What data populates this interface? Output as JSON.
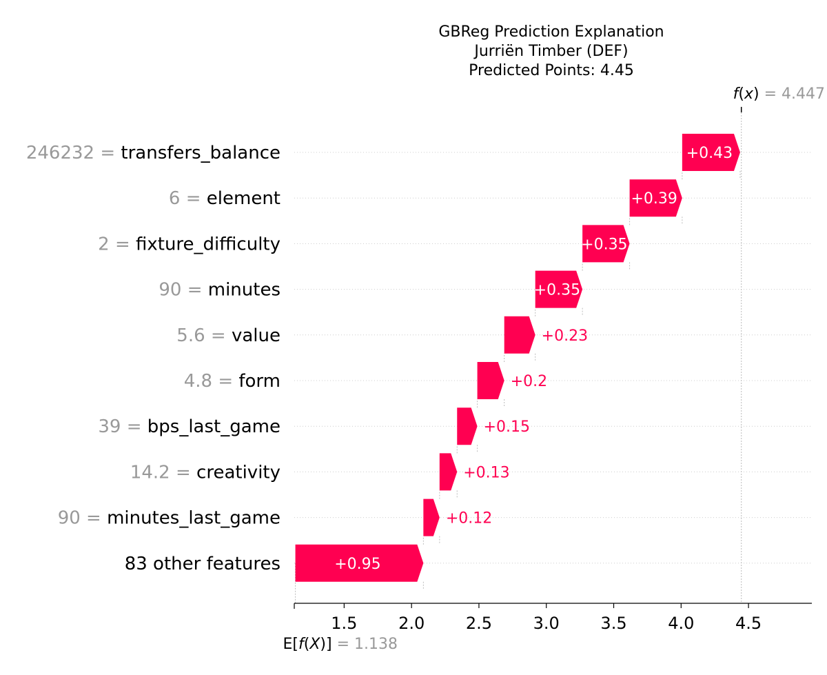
{
  "chart_data": {
    "type": "waterfall",
    "title_lines": [
      "GBReg Prediction Explanation",
      "Jurriën Timber (DEF)",
      "Predicted Points: 4.45"
    ],
    "base_value": 1.138,
    "base_value_text": "1.138",
    "base_label": "E[f(X)]",
    "output_value": 4.447,
    "output_value_text": "4.447",
    "output_label": "f(x)",
    "xlim": [
      1.13,
      4.97
    ],
    "x_ticks": [
      1.5,
      2.0,
      2.5,
      3.0,
      3.5,
      4.0,
      4.5
    ],
    "x_tick_labels": [
      "1.5",
      "2.0",
      "2.5",
      "3.0",
      "3.5",
      "4.0",
      "4.5"
    ],
    "positive_color": "#ff0051",
    "negative_color": "#008bfb",
    "features": [
      {
        "value": "246232",
        "name": "transfers_balance",
        "contribution": 0.43,
        "label": "+0.43"
      },
      {
        "value": "6",
        "name": "element",
        "contribution": 0.39,
        "label": "+0.39"
      },
      {
        "value": "2",
        "name": "fixture_difficulty",
        "contribution": 0.35,
        "label": "+0.35"
      },
      {
        "value": "90",
        "name": "minutes",
        "contribution": 0.35,
        "label": "+0.35"
      },
      {
        "value": "5.6",
        "name": "value",
        "contribution": 0.23,
        "label": "+0.23"
      },
      {
        "value": "4.8",
        "name": "form",
        "contribution": 0.2,
        "label": "+0.2"
      },
      {
        "value": "39",
        "name": "bps_last_game",
        "contribution": 0.15,
        "label": "+0.15"
      },
      {
        "value": "14.2",
        "name": "creativity",
        "contribution": 0.13,
        "label": "+0.13"
      },
      {
        "value": "90",
        "name": "minutes_last_game",
        "contribution": 0.12,
        "label": "+0.12"
      },
      {
        "value": "",
        "name": "83 other features",
        "contribution": 0.95,
        "label": "+0.95"
      }
    ]
  }
}
